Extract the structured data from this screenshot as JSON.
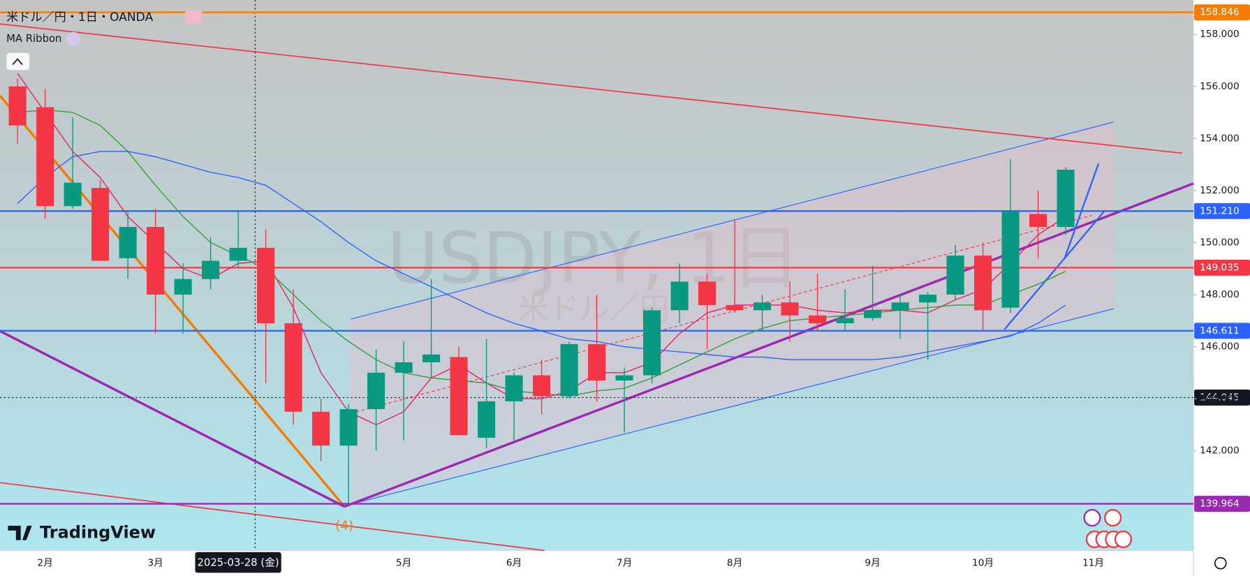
{
  "header": {
    "title": "米ドル／円・1日・OANDA",
    "indicator": "MA Ribbon",
    "watermark": "USDJPY, 1日",
    "watermark_sub": "米ドル／円",
    "brand": "TradingView",
    "wave_label": "(4)"
  },
  "chart_data": {
    "type": "candlestick",
    "categories": [
      null,
      "2月",
      null,
      null,
      null,
      "3月",
      null,
      null,
      "2025-03-28 (金)",
      null,
      null,
      null,
      null,
      null,
      "5月",
      null,
      null,
      null,
      "6月",
      null,
      null,
      null,
      "7月",
      null,
      null,
      null,
      "8月",
      null,
      null,
      null,
      null,
      "9月",
      null,
      null,
      null,
      "10月",
      null,
      null,
      null,
      "11月"
    ],
    "open": [
      156.0,
      155.2,
      151.4,
      152.1,
      149.4,
      150.6,
      148.0,
      148.6,
      149.3,
      149.8,
      146.9,
      143.5,
      142.2,
      143.6,
      145.0,
      145.4,
      145.6,
      142.5,
      143.9,
      144.9,
      144.1,
      146.1,
      144.7,
      144.9,
      147.4,
      148.5,
      147.6,
      147.4,
      147.7,
      147.2,
      146.9,
      147.1,
      147.4,
      147.7,
      148.0,
      149.5,
      147.5,
      151.1,
      150.6,
      null
    ],
    "high": [
      156.3,
      155.9,
      154.8,
      152.4,
      151.2,
      151.3,
      149.2,
      150.2,
      151.2,
      150.5,
      148.2,
      144.0,
      143.8,
      145.9,
      146.2,
      148.6,
      146.0,
      146.3,
      145.0,
      145.5,
      146.2,
      148.0,
      145.2,
      147.5,
      149.2,
      148.8,
      150.9,
      148.0,
      148.5,
      148.8,
      148.2,
      149.1,
      148.0,
      148.1,
      149.9,
      150.0,
      153.2,
      152.0,
      152.9,
      null
    ],
    "low": [
      153.8,
      150.9,
      151.3,
      149.3,
      148.6,
      146.5,
      146.5,
      148.2,
      149.0,
      144.6,
      143.0,
      141.6,
      139.9,
      142.0,
      142.4,
      144.8,
      142.8,
      142.1,
      142.4,
      143.4,
      144.0,
      143.9,
      142.7,
      144.6,
      146.9,
      145.9,
      147.3,
      146.6,
      146.2,
      146.6,
      146.6,
      147.0,
      146.3,
      145.5,
      147.8,
      146.6,
      147.3,
      149.4,
      150.3,
      null
    ],
    "close": [
      154.5,
      151.4,
      152.3,
      149.3,
      150.6,
      148.0,
      148.6,
      149.3,
      149.8,
      146.9,
      143.5,
      142.2,
      143.6,
      145.0,
      145.4,
      145.7,
      142.6,
      143.9,
      144.9,
      144.1,
      146.1,
      144.7,
      144.9,
      147.4,
      148.5,
      147.6,
      147.4,
      147.7,
      147.2,
      146.9,
      147.1,
      147.4,
      147.7,
      148.0,
      149.5,
      147.4,
      151.2,
      150.6,
      152.8,
      null
    ],
    "up_color": "#089981",
    "down_color": "#f23645",
    "series": [
      {
        "color": "#e91e63",
        "values": [
          156.5,
          155,
          153.5,
          152.5,
          151,
          150,
          149,
          148.6,
          149.2,
          149.3,
          147.5,
          145,
          143.5,
          143,
          143.5,
          144.8,
          145.3,
          144.6,
          144,
          144,
          144.3,
          145,
          145,
          145.4,
          146.5,
          147.3,
          147.6,
          147.6,
          147.6,
          147.4,
          147.3,
          147.4,
          147.4,
          147.3,
          147.8,
          148.2,
          149.2,
          150.3,
          151.0,
          null
        ]
      },
      {
        "color": "#2e9d3a",
        "values": [
          155,
          155.1,
          155,
          154.5,
          153.5,
          152.2,
          151,
          150,
          149.5,
          149,
          148,
          147,
          146.2,
          145.5,
          145,
          144.8,
          144.7,
          144.6,
          144.3,
          144.2,
          144.1,
          144.3,
          144.4,
          144.8,
          145.3,
          145.8,
          146.3,
          146.7,
          147.0,
          147.1,
          147.2,
          147.3,
          147.4,
          147.5,
          147.6,
          147.6,
          148.0,
          148.4,
          148.9,
          null
        ]
      },
      {
        "color": "#2962ff",
        "values": [
          151.5,
          152.5,
          153.3,
          153.5,
          153.5,
          153.3,
          153,
          152.7,
          152.5,
          152.2,
          151.5,
          150.8,
          150,
          149.3,
          148.8,
          148.3,
          147.8,
          147.3,
          146.9,
          146.6,
          146.3,
          146.2,
          146,
          145.9,
          145.8,
          145.7,
          145.6,
          145.6,
          145.5,
          145.5,
          145.5,
          145.5,
          145.6,
          145.8,
          146.0,
          146.2,
          146.4,
          146.9,
          147.6,
          null
        ]
      }
    ],
    "ylim": [
      138.17,
      159.32
    ],
    "yticks": [
      {
        "value": 142,
        "label": "142.000"
      },
      {
        "value": 144,
        "label": "144.000"
      },
      {
        "value": 146,
        "label": "146.000"
      },
      {
        "value": 148,
        "label": "148.000"
      },
      {
        "value": 150,
        "label": "150.000"
      },
      {
        "value": 152,
        "label": "152.000"
      },
      {
        "value": 154,
        "label": "154.000"
      },
      {
        "value": 156,
        "label": "156.000"
      },
      {
        "value": 158,
        "label": "158.000"
      }
    ],
    "levels": [
      {
        "value": 158.846,
        "label": "158.846",
        "color": "#f57c00"
      },
      {
        "value": 151.21,
        "label": "151.210",
        "color": "#2962ff"
      },
      {
        "value": 149.035,
        "label": "149.035",
        "color": "#f23645"
      },
      {
        "value": 146.611,
        "label": "146.611",
        "color": "#2962ff"
      },
      {
        "value": 144.045,
        "label": "144.045",
        "color": "#131722"
      },
      {
        "value": 139.964,
        "label": "139.964",
        "color": "#9c27b0"
      }
    ],
    "grid": false
  }
}
